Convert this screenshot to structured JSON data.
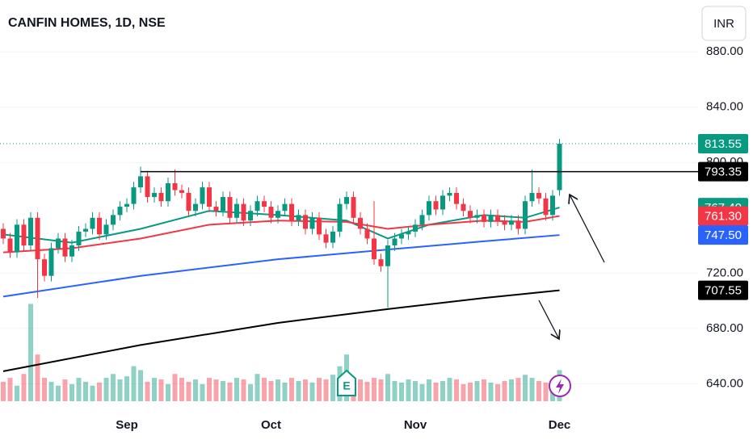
{
  "chart_data": {
    "type": "candlestick",
    "title": "CANFIN HOMES, 1D, NSE",
    "currency": "INR",
    "categories": [
      null,
      null,
      null,
      null,
      null,
      null,
      null,
      null,
      null,
      null,
      null,
      null,
      null,
      null,
      null,
      null,
      null,
      null,
      "Sep",
      null,
      null,
      null,
      null,
      null,
      null,
      null,
      null,
      null,
      null,
      null,
      null,
      null,
      null,
      null,
      null,
      null,
      null,
      null,
      null,
      "Oct",
      null,
      null,
      null,
      null,
      null,
      null,
      null,
      null,
      null,
      null,
      null,
      null,
      null,
      null,
      null,
      null,
      null,
      null,
      null,
      null,
      "Nov",
      null,
      null,
      null,
      null,
      null,
      null,
      null,
      null,
      null,
      null,
      null,
      null,
      null,
      null,
      null,
      null,
      null,
      null,
      null,
      null,
      "Dec"
    ],
    "open": [
      752,
      745,
      735,
      755,
      740,
      760,
      730,
      718,
      738,
      745,
      732,
      740,
      750,
      752,
      760,
      748,
      755,
      762,
      768,
      770,
      782,
      790,
      775,
      778,
      772,
      785,
      780,
      778,
      765,
      770,
      782,
      768,
      765,
      775,
      760,
      770,
      758,
      765,
      772,
      768,
      760,
      765,
      770,
      758,
      762,
      752,
      760,
      748,
      742,
      750,
      770,
      775,
      760,
      752,
      745,
      730,
      725,
      740,
      745,
      748,
      750,
      755,
      762,
      772,
      766,
      776,
      778,
      770,
      765,
      760,
      762,
      757,
      762,
      758,
      755,
      758,
      752,
      772,
      778,
      774,
      762,
      780
    ],
    "high": [
      756,
      749,
      759,
      759,
      764,
      764,
      734,
      742,
      749,
      749,
      744,
      754,
      756,
      764,
      764,
      759,
      766,
      772,
      774,
      786,
      797,
      794,
      782,
      782,
      789,
      795,
      784,
      782,
      774,
      786,
      786,
      772,
      779,
      779,
      774,
      774,
      769,
      776,
      776,
      772,
      769,
      774,
      774,
      766,
      766,
      764,
      764,
      752,
      754,
      774,
      779,
      779,
      764,
      756,
      772,
      734,
      744,
      749,
      752,
      754,
      759,
      766,
      776,
      776,
      780,
      782,
      782,
      774,
      769,
      766,
      766,
      766,
      766,
      762,
      762,
      762,
      776,
      795,
      782,
      778,
      780,
      817
    ],
    "low": [
      741,
      731,
      731,
      736,
      736,
      702,
      714,
      714,
      734,
      728,
      728,
      736,
      746,
      748,
      744,
      744,
      751,
      758,
      764,
      766,
      778,
      771,
      771,
      768,
      768,
      776,
      774,
      761,
      761,
      766,
      764,
      761,
      761,
      756,
      756,
      754,
      754,
      761,
      764,
      756,
      756,
      761,
      754,
      754,
      748,
      748,
      744,
      738,
      738,
      746,
      766,
      756,
      748,
      741,
      726,
      721,
      695,
      736,
      741,
      744,
      746,
      751,
      758,
      762,
      762,
      772,
      766,
      761,
      756,
      756,
      753,
      753,
      754,
      751,
      751,
      748,
      748,
      768,
      770,
      758,
      758,
      776
    ],
    "close": [
      745,
      735,
      755,
      740,
      760,
      730,
      718,
      738,
      745,
      732,
      740,
      750,
      752,
      760,
      748,
      755,
      762,
      768,
      770,
      782,
      790,
      775,
      778,
      772,
      785,
      780,
      778,
      765,
      770,
      782,
      768,
      765,
      775,
      760,
      770,
      758,
      765,
      772,
      768,
      760,
      765,
      770,
      758,
      762,
      752,
      760,
      748,
      742,
      750,
      770,
      775,
      760,
      752,
      745,
      730,
      725,
      740,
      745,
      748,
      750,
      755,
      762,
      772,
      766,
      776,
      778,
      770,
      765,
      760,
      762,
      757,
      762,
      758,
      755,
      758,
      752,
      772,
      778,
      774,
      762,
      776,
      813.55
    ],
    "volume": [
      25,
      30,
      20,
      35,
      125,
      60,
      30,
      25,
      20,
      28,
      22,
      30,
      25,
      20,
      24,
      30,
      35,
      28,
      32,
      45,
      40,
      25,
      30,
      28,
      22,
      35,
      30,
      25,
      28,
      22,
      30,
      28,
      26,
      24,
      30,
      28,
      22,
      35,
      30,
      26,
      28,
      24,
      30,
      26,
      28,
      24,
      30,
      28,
      34,
      45,
      60,
      30,
      28,
      25,
      30,
      28,
      35,
      26,
      24,
      28,
      26,
      22,
      28,
      24,
      26,
      30,
      28,
      22,
      24,
      26,
      28,
      24,
      22,
      26,
      28,
      30,
      34,
      30,
      26,
      24,
      22,
      40
    ],
    "volume_lim": [
      0,
      140
    ],
    "up_color": "#089981",
    "down_color": "#f23645",
    "ylim": [
      618,
      917.5
    ],
    "yticks": [
      {
        "value": 640,
        "label": "640.00"
      },
      {
        "value": 680,
        "label": "680.00"
      },
      {
        "value": 720,
        "label": "720.00"
      },
      {
        "value": 800,
        "label": "800.00"
      },
      {
        "value": 840,
        "label": "840.00"
      },
      {
        "value": 880,
        "label": "880.00"
      }
    ],
    "grid": true,
    "series": [
      {
        "color": "#089981",
        "x": [
          0,
          10,
          20,
          30,
          40,
          50,
          56,
          62,
          70,
          76,
          81
        ],
        "values": [
          748,
          742,
          752,
          765,
          762,
          758,
          745,
          755,
          762,
          760,
          767.4
        ]
      },
      {
        "color": "#f23645",
        "x": [
          0,
          10,
          20,
          30,
          40,
          50,
          56,
          62,
          70,
          76,
          81
        ],
        "values": [
          735,
          738,
          745,
          755,
          758,
          757,
          752,
          755,
          758,
          757,
          761.3
        ]
      },
      {
        "color": "#2962ff",
        "x": [
          0,
          20,
          40,
          56,
          70,
          81
        ],
        "values": [
          703,
          718,
          730,
          737,
          743,
          747.5
        ]
      },
      {
        "color": "#000000",
        "x": [
          0,
          20,
          40,
          56,
          70,
          81
        ],
        "values": [
          649,
          668,
          684,
          694,
          702,
          707.55
        ]
      }
    ],
    "levels": [
      {
        "value": 793.35,
        "from": 20
      }
    ],
    "price_tags": [
      {
        "value": 813.55,
        "color": "#089981"
      },
      {
        "value": 793.35,
        "color": "#000000"
      },
      {
        "value": 767.4,
        "label": "767.40",
        "color": "#089981"
      },
      {
        "value": 761.3,
        "label": "761.30",
        "color": "#f23645"
      },
      {
        "value": 747.5,
        "label": "747.50",
        "color": "#2962ff"
      },
      {
        "value": 707.55,
        "color": "#000000"
      }
    ],
    "events": [
      {
        "label": "E",
        "at": 50
      }
    ]
  }
}
